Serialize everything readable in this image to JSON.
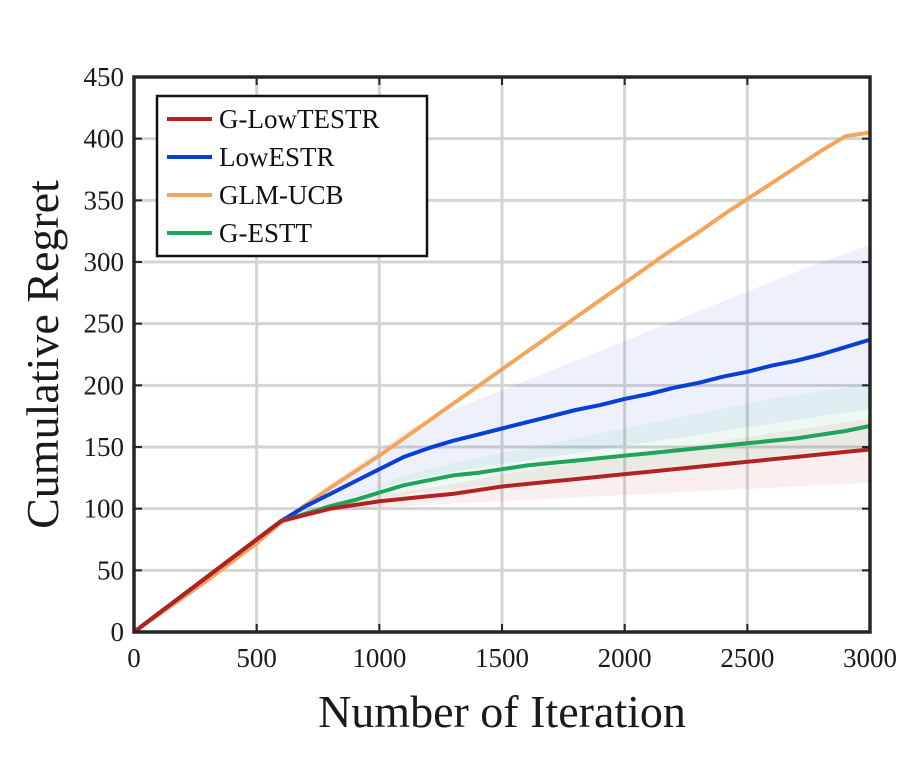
{
  "chart_data": {
    "type": "line",
    "xlabel": "Number of Iteration",
    "ylabel": "Cumulative Regret",
    "xlim": [
      0,
      3000
    ],
    "ylim": [
      0,
      450
    ],
    "xticks": [
      0,
      500,
      1000,
      1500,
      2000,
      2500,
      3000
    ],
    "yticks": [
      0,
      50,
      100,
      150,
      200,
      250,
      300,
      350,
      400,
      450
    ],
    "grid": true,
    "legend_position": "top-left",
    "x": [
      0,
      100,
      200,
      300,
      400,
      500,
      600,
      700,
      800,
      900,
      1000,
      1100,
      1200,
      1300,
      1400,
      1500,
      1600,
      1700,
      1800,
      1900,
      2000,
      2100,
      2200,
      2300,
      2400,
      2500,
      2600,
      2700,
      2800,
      2900,
      3000
    ],
    "series": [
      {
        "name": "G-LowTESTR",
        "color": "#b22222",
        "values": [
          0,
          15,
          30,
          45,
          60,
          75,
          90,
          95,
          100,
          103,
          106,
          108,
          110,
          112,
          115,
          118,
          120,
          122,
          124,
          126,
          128,
          130,
          132,
          134,
          136,
          138,
          140,
          142,
          144,
          146,
          148
        ],
        "band_lower": [
          0,
          15,
          30,
          45,
          60,
          75,
          89,
          93,
          97,
          99,
          101,
          102,
          103,
          104,
          105,
          106,
          107,
          108,
          109,
          110,
          111,
          112,
          113,
          114,
          115,
          116,
          117,
          118,
          119,
          120,
          121
        ],
        "band_upper": [
          0,
          15,
          30,
          45,
          60,
          75,
          91,
          97,
          103,
          107,
          111,
          114,
          117,
          120,
          124,
          128,
          131,
          134,
          137,
          140,
          143,
          146,
          149,
          152,
          155,
          158,
          161,
          164,
          167,
          170,
          173
        ]
      },
      {
        "name": "LowESTR",
        "color": "#0a3fd6",
        "values": [
          0,
          15,
          30,
          45,
          60,
          75,
          90,
          102,
          112,
          122,
          132,
          142,
          149,
          155,
          160,
          165,
          170,
          175,
          180,
          184,
          189,
          193,
          198,
          202,
          207,
          211,
          216,
          220,
          225,
          231,
          237
        ],
        "band_lower": [
          0,
          15,
          30,
          45,
          60,
          75,
          89,
          98,
          104,
          110,
          116,
          122,
          126,
          130,
          133,
          136,
          139,
          142,
          145,
          148,
          151,
          154,
          157,
          160,
          163,
          166,
          169,
          172,
          175,
          178,
          181
        ],
        "band_upper": [
          0,
          15,
          30,
          45,
          60,
          75,
          91,
          106,
          120,
          134,
          148,
          162,
          172,
          180,
          188,
          196,
          204,
          212,
          220,
          228,
          236,
          244,
          252,
          260,
          268,
          276,
          284,
          292,
          300,
          307,
          314
        ]
      },
      {
        "name": "GLM-UCB",
        "color": "#f5a55a",
        "values": [
          0,
          14,
          28,
          42,
          57,
          72,
          89,
          103,
          117,
          130,
          143,
          157,
          171,
          185,
          199,
          213,
          227,
          241,
          255,
          269,
          283,
          297,
          311,
          324,
          338,
          351,
          364,
          377,
          390,
          402,
          405
        ]
      },
      {
        "name": "G-ESTT",
        "color": "#20a35a",
        "values": [
          0,
          15,
          30,
          45,
          60,
          75,
          90,
          96,
          102,
          107,
          113,
          119,
          123,
          127,
          129,
          132,
          135,
          137,
          139,
          141,
          143,
          145,
          147,
          149,
          151,
          153,
          155,
          157,
          160,
          163,
          167
        ],
        "band_lower": [
          0,
          15,
          30,
          45,
          60,
          75,
          89,
          94,
          99,
          103,
          107,
          111,
          114,
          116,
          118,
          120,
          122,
          124,
          126,
          128,
          130,
          132,
          134,
          136,
          138,
          140,
          142,
          144,
          146,
          148,
          150
        ],
        "band_upper": [
          0,
          15,
          30,
          45,
          60,
          75,
          91,
          98,
          105,
          111,
          119,
          127,
          132,
          137,
          141,
          145,
          149,
          153,
          157,
          161,
          165,
          169,
          173,
          177,
          181,
          185,
          189,
          192,
          195,
          198,
          202
        ]
      }
    ]
  }
}
